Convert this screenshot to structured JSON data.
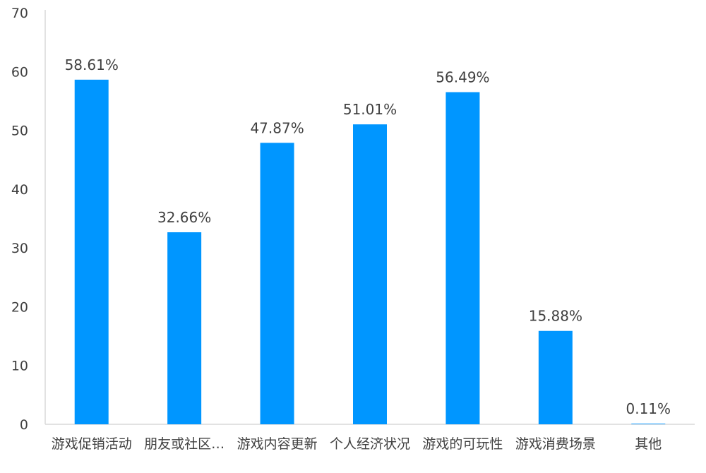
{
  "chart_data": {
    "type": "bar",
    "categories": [
      "游戏促销活动",
      "朋友或社区…",
      "游戏内容更新",
      "个人经济状况",
      "游戏的可玩性",
      "游戏消费场景",
      "其他"
    ],
    "values": [
      58.61,
      32.66,
      47.87,
      51.01,
      56.49,
      15.88,
      0.11
    ],
    "data_labels": [
      "58.61%",
      "32.66%",
      "47.87%",
      "51.01%",
      "56.49%",
      "15.88%",
      "0.11%"
    ],
    "ylim": [
      0,
      70
    ],
    "yticks": [
      "0",
      "10",
      "20",
      "30",
      "40",
      "50",
      "60",
      "70"
    ],
    "grid": false,
    "legend": "none",
    "bar_color": "#0096FF",
    "axis_color": "#D9D9D9",
    "text_color": "#404040"
  }
}
